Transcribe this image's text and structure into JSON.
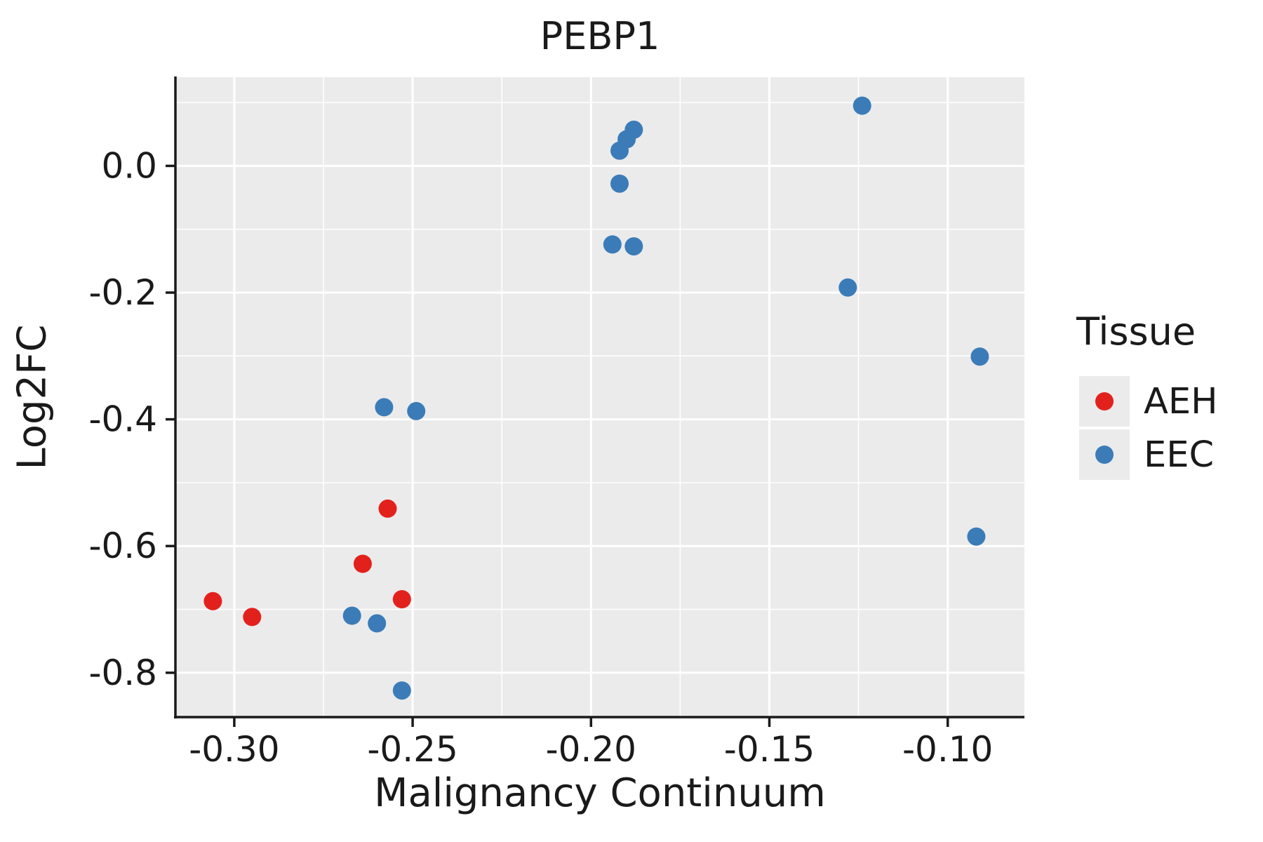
{
  "chart_data": {
    "type": "scatter",
    "title": "PEBP1",
    "xlabel": "Malignancy Continuum",
    "ylabel": "Log2FC",
    "legend_title": "Tissue",
    "legend_position": "right",
    "grid": true,
    "panel_background": "#EBEBEB",
    "grid_color": "#FFFFFF",
    "axis_color": "#1a1a1a",
    "xlim": [
      -0.3165,
      -0.0785
    ],
    "ylim": [
      -0.87,
      0.14
    ],
    "x_ticks": [
      -0.3,
      -0.25,
      -0.2,
      -0.15,
      -0.1
    ],
    "x_tick_labels": [
      "-0.30",
      "-0.25",
      "-0.20",
      "-0.15",
      "-0.10"
    ],
    "y_ticks": [
      0.0,
      -0.2,
      -0.4,
      -0.6,
      -0.8
    ],
    "y_tick_labels": [
      "0.0",
      "-0.2",
      "-0.4",
      "-0.6",
      "-0.8"
    ],
    "x_minor_ticks": [
      -0.275,
      -0.225,
      -0.175,
      -0.125
    ],
    "y_minor_ticks": [
      0.1,
      -0.1,
      -0.3,
      -0.5,
      -0.7
    ],
    "series": [
      {
        "name": "AEH",
        "color": "#E3211C",
        "points": [
          [
            -0.306,
            -0.687
          ],
          [
            -0.295,
            -0.712
          ],
          [
            -0.264,
            -0.628
          ],
          [
            -0.257,
            -0.541
          ],
          [
            -0.253,
            -0.684
          ]
        ]
      },
      {
        "name": "EEC",
        "color": "#3B7CB8",
        "points": [
          [
            -0.267,
            -0.71
          ],
          [
            -0.26,
            -0.722
          ],
          [
            -0.258,
            -0.381
          ],
          [
            -0.249,
            -0.387
          ],
          [
            -0.253,
            -0.828
          ],
          [
            -0.194,
            -0.124
          ],
          [
            -0.188,
            -0.127
          ],
          [
            -0.192,
            0.024
          ],
          [
            -0.19,
            0.042
          ],
          [
            -0.188,
            0.057
          ],
          [
            -0.192,
            -0.028
          ],
          [
            -0.128,
            -0.192
          ],
          [
            -0.124,
            0.095
          ],
          [
            -0.091,
            -0.301
          ],
          [
            -0.092,
            -0.585
          ]
        ]
      }
    ]
  }
}
